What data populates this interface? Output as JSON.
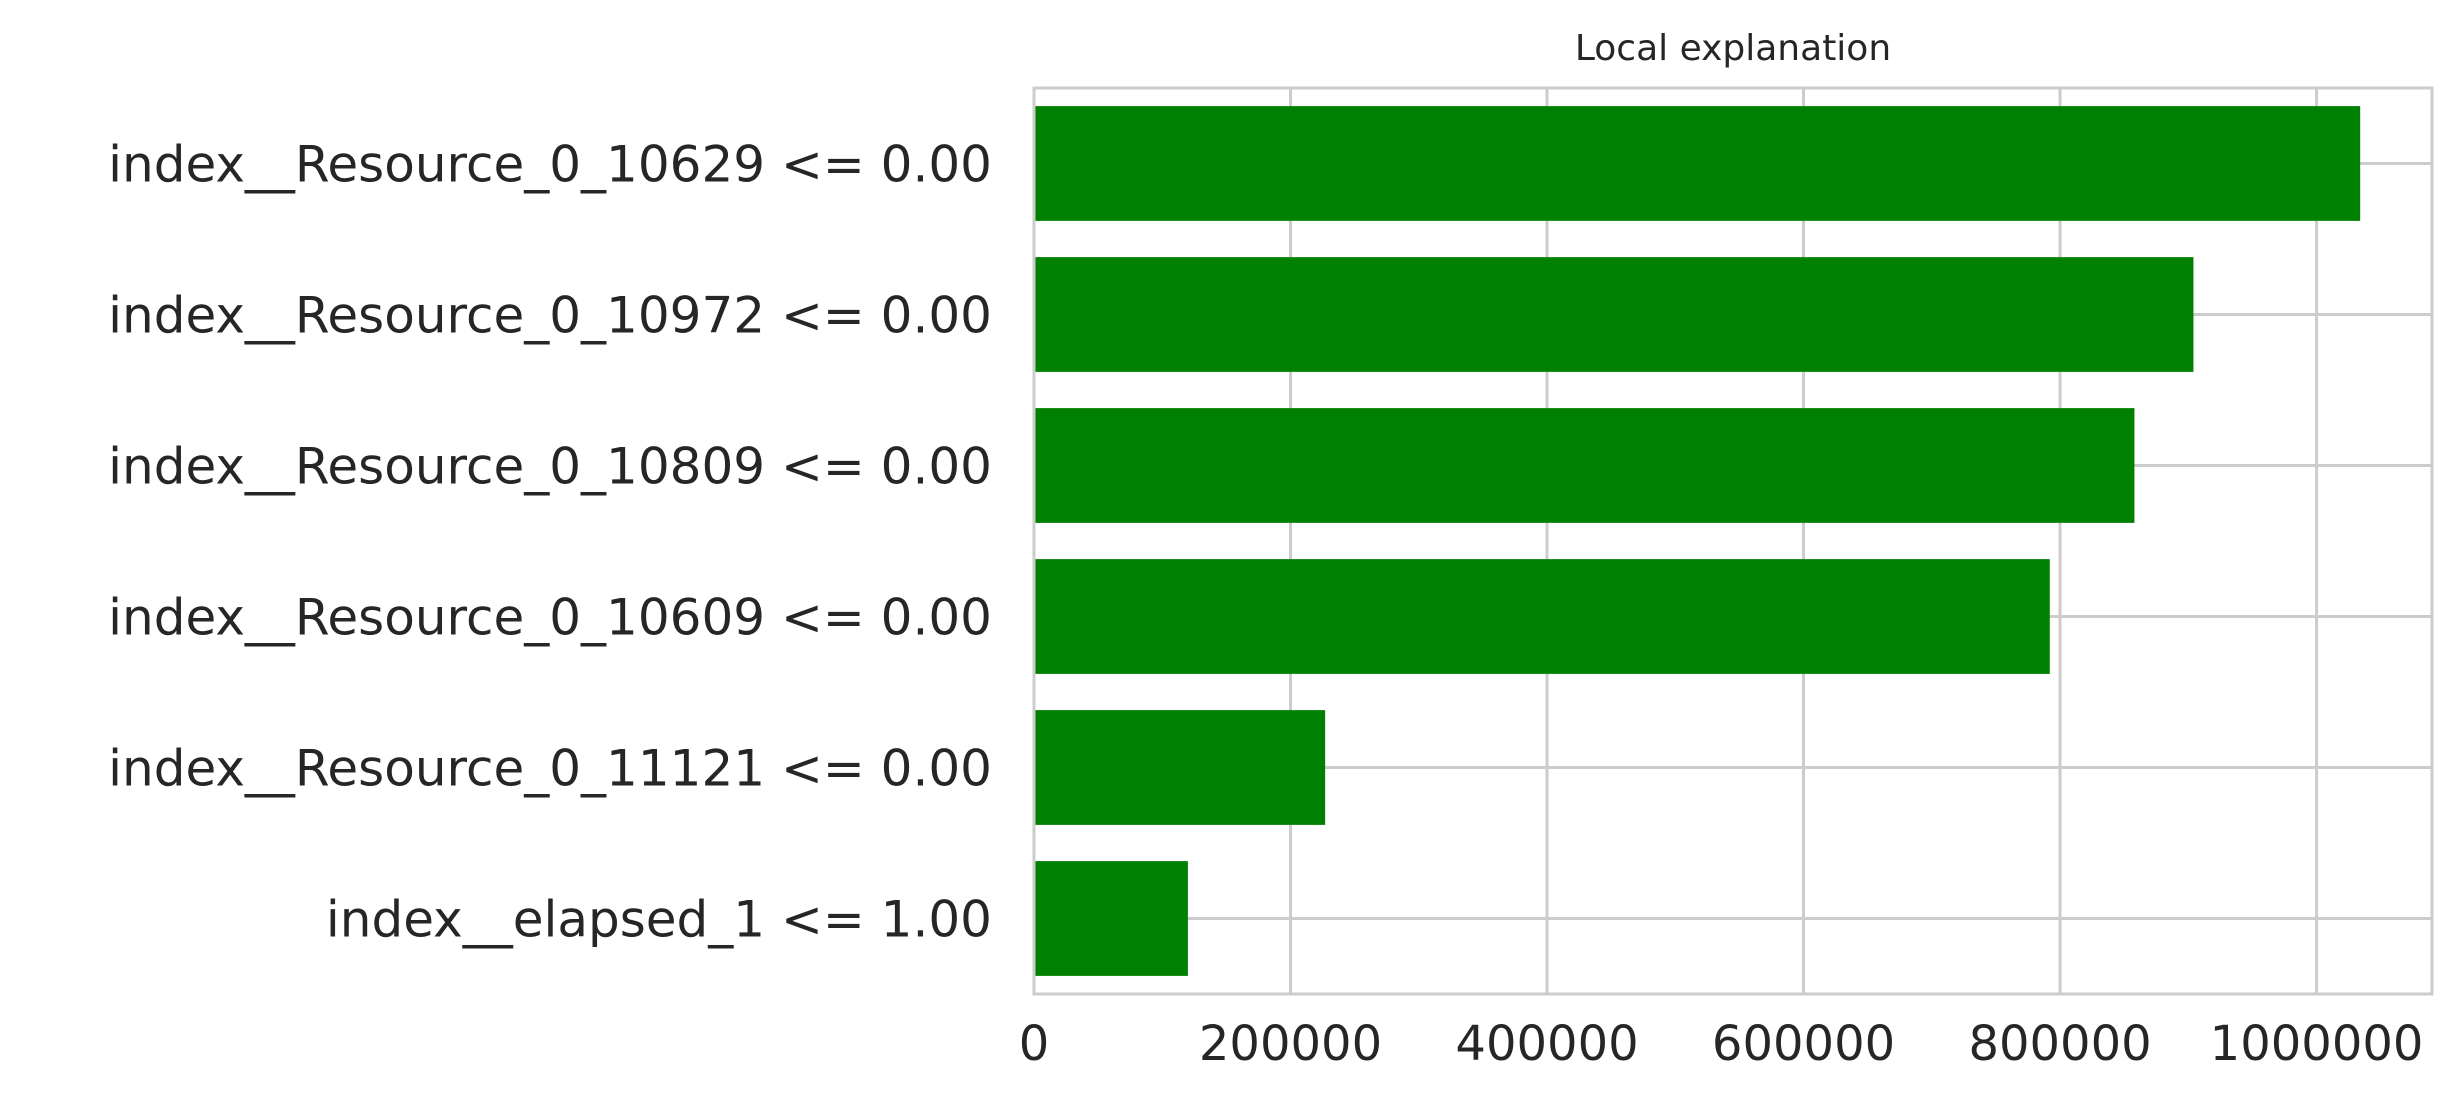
{
  "chart_data": {
    "type": "bar",
    "orientation": "horizontal",
    "title": "Local explanation",
    "xlabel": "",
    "ylabel": "",
    "categories": [
      "index__Resource_0_10629 <= 0.00",
      "index__Resource_0_10972 <= 0.00",
      "index__Resource_0_10809 <= 0.00",
      "index__Resource_0_10609 <= 0.00",
      "index__Resource_0_11121 <= 0.00",
      "index__elapsed_1 <= 1.00"
    ],
    "values": [
      1034000,
      904000,
      858000,
      792000,
      227000,
      120000
    ],
    "xlim": [
      0,
      1090000
    ],
    "xticks": [
      0,
      200000,
      400000,
      600000,
      800000,
      1000000
    ],
    "xtick_labels": [
      "0",
      "200000",
      "400000",
      "600000",
      "800000",
      "1000000"
    ],
    "grid": true,
    "bar_color": "#008000",
    "grid_color": "#cccccc",
    "spine_color": "#cccccc",
    "text_color": "#262626"
  }
}
